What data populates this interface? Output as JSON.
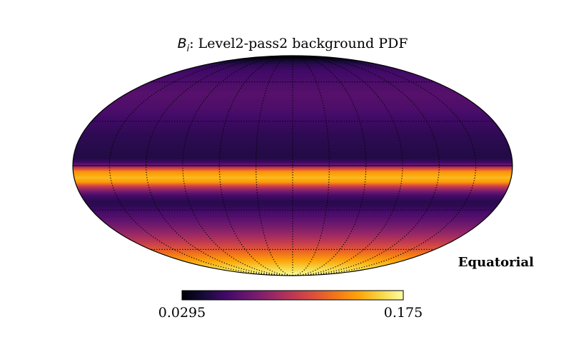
{
  "chart_data": {
    "type": "heatmap",
    "projection": "mollweide",
    "title": {
      "symbol": "B",
      "subscript": "i",
      "rest": ": Level2-pass2 background PDF"
    },
    "frame_label": "Equatorial",
    "colormap": "inferno",
    "colorbar": {
      "min": 0.0295,
      "max": 0.175,
      "min_label": "0.0295",
      "max_label": "0.175",
      "orientation": "horizontal"
    },
    "grid": true,
    "graticule": {
      "latitudes_deg": [
        -60,
        -30,
        30,
        60
      ],
      "longitudes_deg": [
        -150,
        -120,
        -90,
        -60,
        -30,
        0,
        30,
        60,
        90,
        120,
        150
      ],
      "style": "dotted"
    },
    "profile_axis": "declination_deg",
    "profile": [
      {
        "dec": 90,
        "value": 0.0295
      },
      {
        "dec": 86,
        "value": 0.031
      },
      {
        "dec": 83,
        "value": 0.038
      },
      {
        "dec": 80,
        "value": 0.045
      },
      {
        "dec": 76,
        "value": 0.052
      },
      {
        "dec": 70,
        "value": 0.058
      },
      {
        "dec": 60,
        "value": 0.062
      },
      {
        "dec": 50,
        "value": 0.066
      },
      {
        "dec": 40,
        "value": 0.063
      },
      {
        "dec": 30,
        "value": 0.057
      },
      {
        "dec": 20,
        "value": 0.052
      },
      {
        "dec": 10,
        "value": 0.049
      },
      {
        "dec": 5,
        "value": 0.048
      },
      {
        "dec": 2,
        "value": 0.058
      },
      {
        "dec": 0,
        "value": 0.08
      },
      {
        "dec": -2,
        "value": 0.112
      },
      {
        "dec": -4,
        "value": 0.14
      },
      {
        "dec": -8,
        "value": 0.152
      },
      {
        "dec": -11,
        "value": 0.142
      },
      {
        "dec": -14,
        "value": 0.105
      },
      {
        "dec": -17,
        "value": 0.078
      },
      {
        "dec": -20,
        "value": 0.06
      },
      {
        "dec": -24,
        "value": 0.05
      },
      {
        "dec": -27,
        "value": 0.052
      },
      {
        "dec": -30,
        "value": 0.058
      },
      {
        "dec": -35,
        "value": 0.065
      },
      {
        "dec": -42,
        "value": 0.078
      },
      {
        "dec": -50,
        "value": 0.095
      },
      {
        "dec": -57,
        "value": 0.112
      },
      {
        "dec": -63,
        "value": 0.128
      },
      {
        "dec": -70,
        "value": 0.145
      },
      {
        "dec": -78,
        "value": 0.16
      },
      {
        "dec": -85,
        "value": 0.17
      },
      {
        "dec": -90,
        "value": 0.175
      }
    ]
  }
}
